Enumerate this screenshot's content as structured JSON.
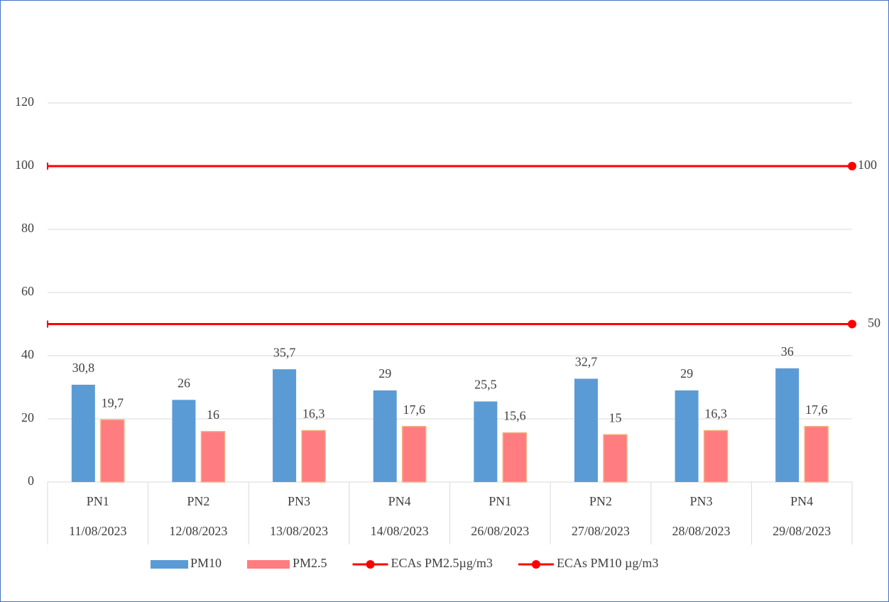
{
  "chart_data": {
    "type": "bar",
    "categories": [
      {
        "station": "PN1",
        "date": "11/08/2023"
      },
      {
        "station": "PN2",
        "date": "12/08/2023"
      },
      {
        "station": "PN3",
        "date": "13/08/2023"
      },
      {
        "station": "PN4",
        "date": "14/08/2023"
      },
      {
        "station": "PN1",
        "date": "26/08/2023"
      },
      {
        "station": "PN2",
        "date": "27/08/2023"
      },
      {
        "station": "PN3",
        "date": "28/08/2023"
      },
      {
        "station": "PN4",
        "date": "29/08/2023"
      }
    ],
    "series": [
      {
        "name": "PM10",
        "type": "bar",
        "color": "#5b9bd5",
        "values": [
          30.8,
          26,
          35.7,
          29,
          25.5,
          32.7,
          29,
          36
        ],
        "value_labels": [
          "30,8",
          "26",
          "35,7",
          "29",
          "25,5",
          "32,7",
          "29",
          "36"
        ]
      },
      {
        "name": "PM2.5",
        "type": "bar",
        "color": "#ff7c80",
        "values": [
          19.7,
          16,
          16.3,
          17.6,
          15.6,
          15,
          16.3,
          17.6
        ],
        "value_labels": [
          "19,7",
          "16",
          "16,3",
          "17,6",
          "15,6",
          "15",
          "16,3",
          "17,6"
        ]
      },
      {
        "name": "ECAs PM2.5µg/m3",
        "type": "line",
        "color": "#ff0000",
        "values": [
          50,
          50,
          50,
          50,
          50,
          50,
          50,
          50
        ],
        "value_labels": [
          null,
          null,
          null,
          null,
          null,
          null,
          null,
          "50"
        ]
      },
      {
        "name": "ECAs PM10 µg/m3",
        "type": "line",
        "color": "#ff0000",
        "values": [
          100,
          100,
          100,
          100,
          100,
          100,
          100,
          100
        ],
        "value_labels": [
          null,
          null,
          null,
          null,
          null,
          null,
          null,
          "100"
        ]
      }
    ],
    "ylim": [
      0,
      120
    ],
    "yticks": [
      0,
      20,
      40,
      60,
      80,
      100,
      120
    ],
    "grid": true,
    "legend": "bottom"
  }
}
